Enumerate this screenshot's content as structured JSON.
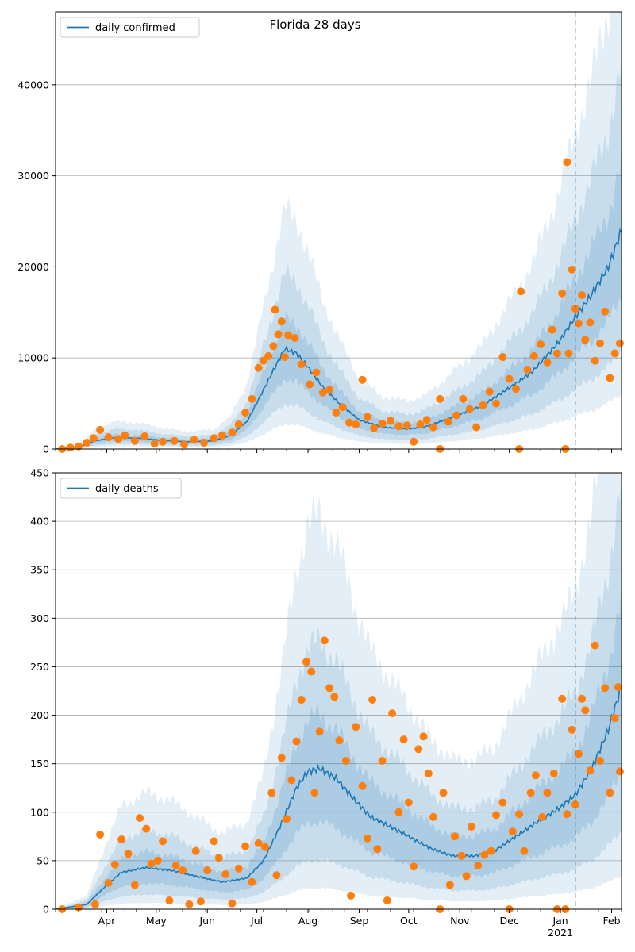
{
  "figure": {
    "title": "Florida 28 days"
  },
  "colors": {
    "median": "#1f77b4",
    "band": "#1f77b4",
    "observed": "#ff7f0e",
    "today_line": "#1f77b4",
    "grid": "#b0b0b0"
  },
  "chart_data": [
    {
      "type": "line",
      "legend": "daily confirmed",
      "legend_position": "top-left",
      "x_range": [
        "2020-03-01",
        "2021-02-07"
      ],
      "ylim": [
        0,
        48000
      ],
      "y_ticks": [
        0,
        10000,
        20000,
        30000,
        40000
      ],
      "x_tick_labels": [],
      "today_date": "2021-01-10",
      "median": [
        [
          "2020-03-01",
          0
        ],
        [
          "2020-03-15",
          200
        ],
        [
          "2020-03-25",
          900
        ],
        [
          "2020-04-05",
          1250
        ],
        [
          "2020-04-20",
          1200
        ],
        [
          "2020-05-05",
          950
        ],
        [
          "2020-05-20",
          800
        ],
        [
          "2020-06-05",
          900
        ],
        [
          "2020-06-15",
          1500
        ],
        [
          "2020-06-25",
          3000
        ],
        [
          "2020-07-05",
          6500
        ],
        [
          "2020-07-12",
          9000
        ],
        [
          "2020-07-18",
          11000
        ],
        [
          "2020-07-25",
          10500
        ],
        [
          "2020-08-01",
          9000
        ],
        [
          "2020-08-10",
          6800
        ],
        [
          "2020-08-20",
          5000
        ],
        [
          "2020-09-01",
          3200
        ],
        [
          "2020-09-15",
          2400
        ],
        [
          "2020-09-30",
          2200
        ],
        [
          "2020-10-10",
          2400
        ],
        [
          "2020-10-20",
          3000
        ],
        [
          "2020-11-01",
          3800
        ],
        [
          "2020-11-15",
          4800
        ],
        [
          "2020-11-25",
          6000
        ],
        [
          "2020-12-05",
          7200
        ],
        [
          "2020-12-15",
          8500
        ],
        [
          "2020-12-25",
          10500
        ],
        [
          "2021-01-01",
          12000
        ],
        [
          "2021-01-10",
          14500
        ],
        [
          "2021-01-20",
          17000
        ],
        [
          "2021-01-30",
          20000
        ],
        [
          "2021-02-07",
          24000
        ]
      ],
      "bands": [
        {
          "factor_lo": 0.25,
          "factor_hi": 2.4,
          "opacity": 0.12
        },
        {
          "factor_lo": 0.45,
          "factor_hi": 1.75,
          "opacity": 0.14
        },
        {
          "factor_lo": 0.7,
          "factor_hi": 1.3,
          "opacity": 0.16
        }
      ],
      "observed": [
        [
          "2020-03-05",
          0
        ],
        [
          "2020-03-10",
          150
        ],
        [
          "2020-03-15",
          300
        ],
        [
          "2020-03-20",
          700
        ],
        [
          "2020-03-24",
          1200
        ],
        [
          "2020-03-28",
          2100
        ],
        [
          "2020-04-02",
          1300
        ],
        [
          "2020-04-08",
          1100
        ],
        [
          "2020-04-12",
          1500
        ],
        [
          "2020-04-18",
          900
        ],
        [
          "2020-04-24",
          1400
        ],
        [
          "2020-04-30",
          600
        ],
        [
          "2020-05-05",
          800
        ],
        [
          "2020-05-12",
          900
        ],
        [
          "2020-05-18",
          500
        ],
        [
          "2020-05-24",
          1000
        ],
        [
          "2020-05-30",
          700
        ],
        [
          "2020-06-05",
          1200
        ],
        [
          "2020-06-10",
          1500
        ],
        [
          "2020-06-16",
          1800
        ],
        [
          "2020-06-20",
          2700
        ],
        [
          "2020-06-24",
          4000
        ],
        [
          "2020-06-28",
          5500
        ],
        [
          "2020-07-02",
          8900
        ],
        [
          "2020-07-05",
          9700
        ],
        [
          "2020-07-08",
          10200
        ],
        [
          "2020-07-11",
          11300
        ],
        [
          "2020-07-12",
          15300
        ],
        [
          "2020-07-14",
          12600
        ],
        [
          "2020-07-16",
          14000
        ],
        [
          "2020-07-18",
          10100
        ],
        [
          "2020-07-20",
          12500
        ],
        [
          "2020-07-24",
          12200
        ],
        [
          "2020-07-28",
          9300
        ],
        [
          "2020-08-02",
          7100
        ],
        [
          "2020-08-06",
          8400
        ],
        [
          "2020-08-10",
          6200
        ],
        [
          "2020-08-14",
          6500
        ],
        [
          "2020-08-18",
          4000
        ],
        [
          "2020-08-22",
          4600
        ],
        [
          "2020-08-26",
          2900
        ],
        [
          "2020-08-30",
          2700
        ],
        [
          "2020-09-03",
          7600
        ],
        [
          "2020-09-06",
          3500
        ],
        [
          "2020-09-10",
          2300
        ],
        [
          "2020-09-15",
          2800
        ],
        [
          "2020-09-20",
          3100
        ],
        [
          "2020-09-25",
          2500
        ],
        [
          "2020-09-30",
          2600
        ],
        [
          "2020-10-04",
          800
        ],
        [
          "2020-10-08",
          2700
        ],
        [
          "2020-10-12",
          3200
        ],
        [
          "2020-10-16",
          2400
        ],
        [
          "2020-10-20",
          0
        ],
        [
          "2020-10-20",
          5500
        ],
        [
          "2020-10-25",
          3000
        ],
        [
          "2020-10-30",
          3700
        ],
        [
          "2020-11-03",
          5500
        ],
        [
          "2020-11-07",
          4400
        ],
        [
          "2020-11-11",
          2400
        ],
        [
          "2020-11-15",
          4800
        ],
        [
          "2020-11-19",
          6300
        ],
        [
          "2020-11-23",
          5000
        ],
        [
          "2020-11-27",
          10100
        ],
        [
          "2020-12-01",
          7700
        ],
        [
          "2020-12-05",
          6600
        ],
        [
          "2020-12-07",
          0
        ],
        [
          "2020-12-08",
          17300
        ],
        [
          "2020-12-12",
          8700
        ],
        [
          "2020-12-16",
          10200
        ],
        [
          "2020-12-20",
          11500
        ],
        [
          "2020-12-24",
          9500
        ],
        [
          "2020-12-27",
          13100
        ],
        [
          "2020-12-30",
          10500
        ],
        [
          "2021-01-02",
          17100
        ],
        [
          "2021-01-04",
          0
        ],
        [
          "2021-01-05",
          31500
        ],
        [
          "2021-01-06",
          10500
        ],
        [
          "2021-01-08",
          19700
        ],
        [
          "2021-01-10",
          15400
        ],
        [
          "2021-01-12",
          13800
        ],
        [
          "2021-01-14",
          16900
        ],
        [
          "2021-01-16",
          12000
        ],
        [
          "2021-01-19",
          13900
        ],
        [
          "2021-01-22",
          9700
        ],
        [
          "2021-01-25",
          11600
        ],
        [
          "2021-01-28",
          15100
        ],
        [
          "2021-01-31",
          7800
        ],
        [
          "2021-02-03",
          10500
        ],
        [
          "2021-02-06",
          11600
        ]
      ]
    },
    {
      "type": "line",
      "legend": "daily deaths",
      "legend_position": "top-left",
      "x_range": [
        "2020-03-01",
        "2021-02-07"
      ],
      "ylim": [
        0,
        450
      ],
      "y_ticks": [
        0,
        50,
        100,
        150,
        200,
        250,
        300,
        350,
        400,
        450
      ],
      "x_tick_labels": [
        {
          "date": "2020-04-01",
          "label": "Apr"
        },
        {
          "date": "2020-05-01",
          "label": "May"
        },
        {
          "date": "2020-06-01",
          "label": "Jun"
        },
        {
          "date": "2020-07-01",
          "label": "Jul"
        },
        {
          "date": "2020-08-01",
          "label": "Aug"
        },
        {
          "date": "2020-09-01",
          "label": "Sep"
        },
        {
          "date": "2020-10-01",
          "label": "Oct"
        },
        {
          "date": "2020-11-01",
          "label": "Nov"
        },
        {
          "date": "2020-12-01",
          "label": "Dec"
        },
        {
          "date": "2021-01-01",
          "label": "Jan",
          "sublabel": "2021"
        },
        {
          "date": "2021-02-01",
          "label": "Feb"
        }
      ],
      "today_date": "2021-01-10",
      "median": [
        [
          "2020-03-01",
          0
        ],
        [
          "2020-03-20",
          5
        ],
        [
          "2020-04-01",
          25
        ],
        [
          "2020-04-10",
          38
        ],
        [
          "2020-04-25",
          43
        ],
        [
          "2020-05-10",
          40
        ],
        [
          "2020-05-25",
          34
        ],
        [
          "2020-06-10",
          28
        ],
        [
          "2020-06-25",
          32
        ],
        [
          "2020-07-05",
          50
        ],
        [
          "2020-07-15",
          85
        ],
        [
          "2020-07-25",
          125
        ],
        [
          "2020-08-01",
          142
        ],
        [
          "2020-08-08",
          145
        ],
        [
          "2020-08-18",
          135
        ],
        [
          "2020-08-28",
          115
        ],
        [
          "2020-09-08",
          95
        ],
        [
          "2020-09-20",
          85
        ],
        [
          "2020-10-01",
          75
        ],
        [
          "2020-10-15",
          62
        ],
        [
          "2020-10-28",
          55
        ],
        [
          "2020-11-10",
          55
        ],
        [
          "2020-11-22",
          60
        ],
        [
          "2020-12-05",
          75
        ],
        [
          "2020-12-18",
          90
        ],
        [
          "2021-01-01",
          105
        ],
        [
          "2021-01-10",
          118
        ],
        [
          "2021-01-20",
          145
        ],
        [
          "2021-01-30",
          185
        ],
        [
          "2021-02-07",
          230
        ]
      ],
      "bands": [
        {
          "factor_lo": 0.15,
          "factor_hi": 2.8,
          "opacity": 0.12
        },
        {
          "factor_lo": 0.35,
          "factor_hi": 1.9,
          "opacity": 0.14
        },
        {
          "factor_lo": 0.62,
          "factor_hi": 1.38,
          "opacity": 0.16
        }
      ],
      "observed": [
        [
          "2020-03-05",
          0
        ],
        [
          "2020-03-15",
          2
        ],
        [
          "2020-03-25",
          5
        ],
        [
          "2020-03-28",
          77
        ],
        [
          "2020-04-02",
          27
        ],
        [
          "2020-04-06",
          46
        ],
        [
          "2020-04-10",
          72
        ],
        [
          "2020-04-14",
          57
        ],
        [
          "2020-04-18",
          25
        ],
        [
          "2020-04-21",
          94
        ],
        [
          "2020-04-25",
          83
        ],
        [
          "2020-04-28",
          47
        ],
        [
          "2020-05-02",
          50
        ],
        [
          "2020-05-05",
          70
        ],
        [
          "2020-05-09",
          9
        ],
        [
          "2020-05-13",
          45
        ],
        [
          "2020-05-17",
          40
        ],
        [
          "2020-05-21",
          5
        ],
        [
          "2020-05-25",
          60
        ],
        [
          "2020-05-28",
          8
        ],
        [
          "2020-06-01",
          40
        ],
        [
          "2020-06-05",
          70
        ],
        [
          "2020-06-08",
          53
        ],
        [
          "2020-06-12",
          36
        ],
        [
          "2020-06-16",
          6
        ],
        [
          "2020-06-20",
          42
        ],
        [
          "2020-06-24",
          65
        ],
        [
          "2020-06-28",
          28
        ],
        [
          "2020-07-02",
          68
        ],
        [
          "2020-07-06",
          64
        ],
        [
          "2020-07-10",
          120
        ],
        [
          "2020-07-13",
          35
        ],
        [
          "2020-07-16",
          156
        ],
        [
          "2020-07-19",
          93
        ],
        [
          "2020-07-22",
          133
        ],
        [
          "2020-07-25",
          173
        ],
        [
          "2020-07-28",
          216
        ],
        [
          "2020-07-31",
          255
        ],
        [
          "2020-08-03",
          245
        ],
        [
          "2020-08-05",
          120
        ],
        [
          "2020-08-08",
          183
        ],
        [
          "2020-08-11",
          277
        ],
        [
          "2020-08-14",
          228
        ],
        [
          "2020-08-17",
          219
        ],
        [
          "2020-08-20",
          174
        ],
        [
          "2020-08-24",
          153
        ],
        [
          "2020-08-27",
          14
        ],
        [
          "2020-08-30",
          188
        ],
        [
          "2020-09-03",
          127
        ],
        [
          "2020-09-06",
          73
        ],
        [
          "2020-09-09",
          216
        ],
        [
          "2020-09-12",
          62
        ],
        [
          "2020-09-15",
          153
        ],
        [
          "2020-09-18",
          9
        ],
        [
          "2020-09-21",
          202
        ],
        [
          "2020-09-25",
          100
        ],
        [
          "2020-09-28",
          175
        ],
        [
          "2020-10-01",
          110
        ],
        [
          "2020-10-04",
          44
        ],
        [
          "2020-10-07",
          165
        ],
        [
          "2020-10-10",
          178
        ],
        [
          "2020-10-13",
          140
        ],
        [
          "2020-10-16",
          95
        ],
        [
          "2020-10-20",
          0
        ],
        [
          "2020-10-22",
          120
        ],
        [
          "2020-10-26",
          25
        ],
        [
          "2020-10-29",
          75
        ],
        [
          "2020-11-02",
          55
        ],
        [
          "2020-11-05",
          34
        ],
        [
          "2020-11-08",
          85
        ],
        [
          "2020-11-12",
          45
        ],
        [
          "2020-11-16",
          56
        ],
        [
          "2020-11-20",
          60
        ],
        [
          "2020-11-23",
          97
        ],
        [
          "2020-11-27",
          110
        ],
        [
          "2020-12-01",
          0
        ],
        [
          "2020-12-03",
          80
        ],
        [
          "2020-12-07",
          98
        ],
        [
          "2020-12-10",
          60
        ],
        [
          "2020-12-14",
          120
        ],
        [
          "2020-12-17",
          138
        ],
        [
          "2020-12-21",
          95
        ],
        [
          "2020-12-24",
          120
        ],
        [
          "2020-12-28",
          140
        ],
        [
          "2020-12-30",
          0
        ],
        [
          "2021-01-02",
          217
        ],
        [
          "2021-01-04",
          0
        ],
        [
          "2021-01-05",
          98
        ],
        [
          "2021-01-08",
          185
        ],
        [
          "2021-01-10",
          108
        ],
        [
          "2021-01-12",
          160
        ],
        [
          "2021-01-14",
          217
        ],
        [
          "2021-01-16",
          205
        ],
        [
          "2021-01-19",
          143
        ],
        [
          "2021-01-22",
          272
        ],
        [
          "2021-01-25",
          153
        ],
        [
          "2021-01-28",
          228
        ],
        [
          "2021-01-31",
          120
        ],
        [
          "2021-02-03",
          197
        ],
        [
          "2021-02-05",
          229
        ],
        [
          "2021-02-06",
          142
        ]
      ]
    }
  ]
}
